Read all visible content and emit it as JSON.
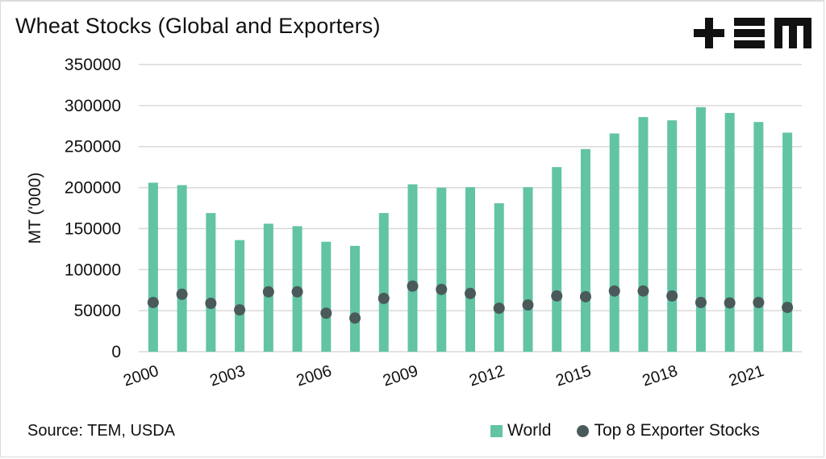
{
  "header": {
    "title": "Wheat Stocks (Global and Exporters)",
    "logo_text": "TEM"
  },
  "footer": {
    "source": "Source: TEM, USDA"
  },
  "colors": {
    "world": "#62c4a3",
    "exporters": "#4a5a5b",
    "grid": "#d9d9d9"
  },
  "chart_data": {
    "type": "bar",
    "title": "Wheat Stocks (Global and Exporters)",
    "xlabel": "",
    "ylabel": "MT ('000)",
    "ylim": [
      0,
      350000
    ],
    "yticks": [
      "0",
      "50000",
      "100000",
      "150000",
      "200000",
      "250000",
      "300000",
      "350000"
    ],
    "ytick_values": [
      0,
      50000,
      100000,
      150000,
      200000,
      250000,
      300000,
      350000
    ],
    "grid": true,
    "legend_position": "bottom-right",
    "categories": [
      "2000",
      "2001",
      "2002",
      "2003",
      "2004",
      "2005",
      "2006",
      "2007",
      "2008",
      "2009",
      "2010",
      "2011",
      "2012",
      "2013",
      "2014",
      "2015",
      "2016",
      "2017",
      "2018",
      "2019",
      "2020",
      "2021",
      "2022"
    ],
    "xtick_labels": [
      "2000",
      "2003",
      "2006",
      "2009",
      "2012",
      "2015",
      "2018",
      "2021"
    ],
    "series": [
      {
        "name": "World",
        "type": "bar",
        "values": [
          206000,
          203000,
          169000,
          136000,
          156000,
          153000,
          134000,
          129000,
          169000,
          204000,
          200000,
          200500,
          181000,
          200500,
          225000,
          247000,
          266000,
          286000,
          282000,
          298000,
          291000,
          280000,
          267000
        ]
      },
      {
        "name": "Top 8 Exporter Stocks",
        "type": "scatter",
        "values": [
          60000,
          70000,
          59000,
          51000,
          73000,
          73000,
          47000,
          41000,
          65000,
          80000,
          76000,
          71000,
          53000,
          57000,
          68000,
          67000,
          74000,
          74000,
          68000,
          60000,
          59500,
          60000,
          54000
        ]
      }
    ]
  }
}
